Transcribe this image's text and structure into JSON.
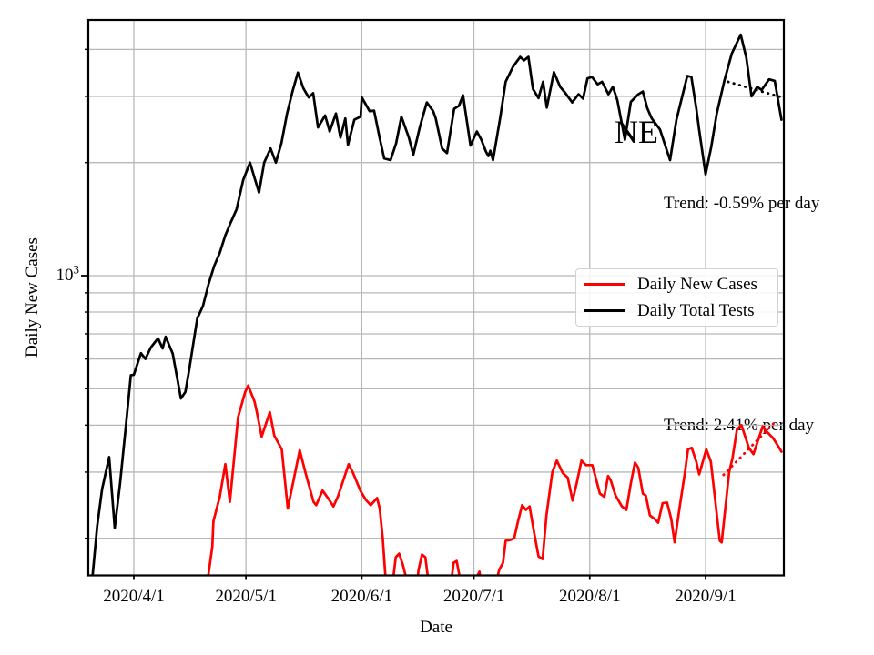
{
  "chart_data": {
    "type": "line",
    "title": "",
    "x_axis": {
      "label": "Date",
      "tick_labels": [
        "2020/4/1",
        "2020/5/1",
        "2020/6/1",
        "2020/7/1",
        "2020/8/1",
        "2020/9/1"
      ],
      "tick_days": [
        12,
        42,
        73,
        103,
        134,
        165
      ],
      "start_date": "2020/3/20",
      "domain_days": [
        0,
        186
      ]
    },
    "y_axis": {
      "label": "Daily New Cases",
      "scale": "log",
      "major_tick": {
        "base": "10",
        "exponent": "3",
        "value": 1000
      },
      "minor_tick_values": [
        200,
        300,
        400,
        500,
        600,
        700,
        800,
        900,
        2000,
        3000,
        4000
      ],
      "range": [
        160,
        4790
      ]
    },
    "grid": {
      "color": "#b8b8b8",
      "which": "both"
    },
    "annotations": [
      {
        "text": "NE"
      }
    ],
    "legend": {
      "position": "center-right",
      "items": [
        {
          "label": "Daily New Cases",
          "color": "#ff0000"
        },
        {
          "label": "Daily Total Tests",
          "color": "#000000"
        }
      ]
    },
    "series": [
      {
        "name": "Daily Total Tests",
        "color": "#000000",
        "points": [
          [
            1.0,
            160
          ],
          [
            2.2,
            215
          ],
          [
            3.5,
            270
          ],
          [
            5.4,
            329
          ],
          [
            6.9,
            213
          ],
          [
            8.3,
            279
          ],
          [
            9.8,
            390
          ],
          [
            11.2,
            543
          ],
          [
            12.0,
            545
          ],
          [
            13.9,
            622
          ],
          [
            15.1,
            600
          ],
          [
            16.6,
            645
          ],
          [
            18.5,
            681
          ],
          [
            19.7,
            640
          ],
          [
            20.5,
            688
          ],
          [
            22.4,
            620
          ],
          [
            24.6,
            471
          ],
          [
            25.8,
            490
          ],
          [
            26.8,
            560
          ],
          [
            29.0,
            770
          ],
          [
            30.5,
            830
          ],
          [
            32.0,
            950
          ],
          [
            33.5,
            1060
          ],
          [
            35.0,
            1150
          ],
          [
            36.5,
            1280
          ],
          [
            38.0,
            1390
          ],
          [
            39.5,
            1500
          ],
          [
            41.3,
            1800
          ],
          [
            43.1,
            2000
          ],
          [
            44.3,
            1820
          ],
          [
            45.5,
            1665
          ],
          [
            46.9,
            2000
          ],
          [
            48.6,
            2180
          ],
          [
            50.0,
            2000
          ],
          [
            51.5,
            2250
          ],
          [
            53.0,
            2700
          ],
          [
            54.5,
            3100
          ],
          [
            55.9,
            3470
          ],
          [
            57.4,
            3150
          ],
          [
            58.8,
            2980
          ],
          [
            60.0,
            3060
          ],
          [
            61.3,
            2480
          ],
          [
            63.2,
            2670
          ],
          [
            64.4,
            2420
          ],
          [
            66.1,
            2700
          ],
          [
            67.3,
            2330
          ],
          [
            68.6,
            2620
          ],
          [
            69.3,
            2230
          ],
          [
            71.0,
            2600
          ],
          [
            72.7,
            2650
          ],
          [
            73.0,
            2980
          ],
          [
            75.1,
            2740
          ],
          [
            76.3,
            2750
          ],
          [
            77.8,
            2320
          ],
          [
            79.0,
            2050
          ],
          [
            80.7,
            2030
          ],
          [
            82.2,
            2250
          ],
          [
            83.6,
            2650
          ],
          [
            85.6,
            2330
          ],
          [
            86.8,
            2100
          ],
          [
            88.6,
            2500
          ],
          [
            90.4,
            2890
          ],
          [
            92.1,
            2740
          ],
          [
            92.8,
            2620
          ],
          [
            94.5,
            2180
          ],
          [
            95.8,
            2120
          ],
          [
            97.7,
            2780
          ],
          [
            99.0,
            2830
          ],
          [
            100.1,
            3020
          ],
          [
            102.1,
            2220
          ],
          [
            103.8,
            2420
          ],
          [
            105.0,
            2300
          ],
          [
            106.2,
            2140
          ],
          [
            106.9,
            2080
          ],
          [
            107.4,
            2150
          ],
          [
            108.1,
            2030
          ],
          [
            110.0,
            2620
          ],
          [
            111.5,
            3280
          ],
          [
            113.5,
            3600
          ],
          [
            115.4,
            3820
          ],
          [
            116.4,
            3740
          ],
          [
            117.6,
            3820
          ],
          [
            118.8,
            3140
          ],
          [
            120.3,
            2970
          ],
          [
            121.5,
            3280
          ],
          [
            122.5,
            2800
          ],
          [
            124.4,
            3480
          ],
          [
            126.1,
            3180
          ],
          [
            127.5,
            3060
          ],
          [
            129.3,
            2890
          ],
          [
            131.0,
            3040
          ],
          [
            132.2,
            2960
          ],
          [
            133.4,
            3350
          ],
          [
            134.6,
            3380
          ],
          [
            136.1,
            3230
          ],
          [
            137.3,
            3280
          ],
          [
            139.0,
            3040
          ],
          [
            140.2,
            3180
          ],
          [
            141.4,
            2930
          ],
          [
            143.4,
            2300
          ],
          [
            145.0,
            2900
          ],
          [
            147.0,
            3040
          ],
          [
            148.2,
            3090
          ],
          [
            149.4,
            2790
          ],
          [
            150.6,
            2620
          ],
          [
            152.8,
            2450
          ],
          [
            155.5,
            2030
          ],
          [
            157.2,
            2600
          ],
          [
            160.1,
            3400
          ],
          [
            161.2,
            3380
          ],
          [
            162.5,
            2790
          ],
          [
            163.3,
            2440
          ],
          [
            165.0,
            1860
          ],
          [
            166.5,
            2200
          ],
          [
            168.0,
            2700
          ],
          [
            170.0,
            3300
          ],
          [
            172.0,
            3900
          ],
          [
            174.4,
            4380
          ],
          [
            175.9,
            3800
          ],
          [
            177.3,
            3000
          ],
          [
            178.8,
            3180
          ],
          [
            180.0,
            3120
          ],
          [
            182.0,
            3330
          ],
          [
            183.5,
            3300
          ],
          [
            185.3,
            2600
          ]
        ]
      },
      {
        "name": "Daily New Cases",
        "color": "#ff0000",
        "points": [
          [
            31.9,
            158
          ],
          [
            33.0,
            190
          ],
          [
            33.3,
            222
          ],
          [
            35.0,
            258
          ],
          [
            36.5,
            315
          ],
          [
            37.7,
            250
          ],
          [
            39.9,
            420
          ],
          [
            41.8,
            490
          ],
          [
            42.6,
            510
          ],
          [
            44.3,
            462
          ],
          [
            45.0,
            430
          ],
          [
            46.2,
            373
          ],
          [
            48.4,
            433
          ],
          [
            49.6,
            375
          ],
          [
            51.6,
            345
          ],
          [
            53.2,
            240
          ],
          [
            56.4,
            343
          ],
          [
            58.1,
            295
          ],
          [
            60.1,
            250
          ],
          [
            60.8,
            245
          ],
          [
            62.5,
            268
          ],
          [
            64.4,
            252
          ],
          [
            65.4,
            243
          ],
          [
            66.6,
            258
          ],
          [
            69.5,
            315
          ],
          [
            70.7,
            298
          ],
          [
            72.7,
            267
          ],
          [
            74.1,
            253
          ],
          [
            75.4,
            245
          ],
          [
            77.1,
            256
          ],
          [
            77.8,
            240
          ],
          [
            78.6,
            200
          ],
          [
            79.4,
            155
          ],
          [
            80.2,
            125
          ],
          [
            81.2,
            150
          ],
          [
            82.1,
            178
          ],
          [
            83.0,
            182
          ],
          [
            84.0,
            170
          ],
          [
            84.8,
            158
          ],
          [
            85.6,
            135
          ],
          [
            86.4,
            120
          ],
          [
            87.3,
            140
          ],
          [
            88.2,
            165
          ],
          [
            89.1,
            181
          ],
          [
            90.0,
            178
          ],
          [
            90.9,
            152
          ],
          [
            91.8,
            128
          ],
          [
            93.0,
            115
          ],
          [
            94.5,
            112
          ],
          [
            95.8,
            125
          ],
          [
            96.8,
            150
          ],
          [
            97.6,
            172
          ],
          [
            98.4,
            174
          ],
          [
            99.3,
            156
          ],
          [
            100.1,
            128
          ],
          [
            101.0,
            115
          ],
          [
            102.0,
            112
          ],
          [
            103.0,
            135
          ],
          [
            103.8,
            158
          ],
          [
            104.5,
            163
          ],
          [
            105.3,
            138
          ],
          [
            106.2,
            118
          ],
          [
            107.0,
            114
          ],
          [
            108.0,
            125
          ],
          [
            108.9,
            152
          ],
          [
            109.8,
            165
          ],
          [
            110.8,
            172
          ],
          [
            111.5,
            197
          ],
          [
            112.8,
            198
          ],
          [
            113.8,
            200
          ],
          [
            114.8,
            222
          ],
          [
            115.9,
            245
          ],
          [
            116.9,
            238
          ],
          [
            117.9,
            243
          ],
          [
            119.0,
            210
          ],
          [
            120.3,
            179
          ],
          [
            121.4,
            176
          ],
          [
            122.4,
            230
          ],
          [
            124.0,
            300
          ],
          [
            125.2,
            322
          ],
          [
            126.8,
            298
          ],
          [
            128.1,
            290
          ],
          [
            129.4,
            252
          ],
          [
            130.5,
            280
          ],
          [
            131.8,
            322
          ],
          [
            133.0,
            313
          ],
          [
            134.7,
            313
          ],
          [
            135.6,
            290
          ],
          [
            136.7,
            263
          ],
          [
            137.9,
            258
          ],
          [
            138.9,
            293
          ],
          [
            139.6,
            285
          ],
          [
            140.9,
            260
          ],
          [
            142.6,
            243
          ],
          [
            143.8,
            238
          ],
          [
            145.0,
            280
          ],
          [
            146.1,
            318
          ],
          [
            147.0,
            308
          ],
          [
            148.2,
            263
          ],
          [
            149.0,
            260
          ],
          [
            150.1,
            230
          ],
          [
            151.4,
            225
          ],
          [
            152.3,
            220
          ],
          [
            153.5,
            248
          ],
          [
            154.7,
            249
          ],
          [
            155.8,
            225
          ],
          [
            156.7,
            195
          ],
          [
            158.0,
            240
          ],
          [
            159.5,
            300
          ],
          [
            160.3,
            345
          ],
          [
            161.3,
            348
          ],
          [
            162.5,
            320
          ],
          [
            163.3,
            296
          ],
          [
            165.2,
            345
          ],
          [
            166.4,
            320
          ],
          [
            168.8,
            197
          ],
          [
            169.3,
            195
          ],
          [
            171.3,
            300
          ],
          [
            172.2,
            327
          ],
          [
            173.4,
            390
          ],
          [
            174.6,
            400
          ],
          [
            176.6,
            348
          ],
          [
            177.8,
            335
          ],
          [
            180.3,
            397
          ],
          [
            181.0,
            388
          ],
          [
            183.0,
            370
          ],
          [
            184.2,
            355
          ],
          [
            185.3,
            340
          ]
        ]
      }
    ],
    "trend_lines": [
      {
        "series": "Daily Total Tests",
        "label": "Trend: -0.59% per day",
        "rate_per_day_pct": -0.59,
        "color": "#000000",
        "points": [
          [
            171.0,
            3280
          ],
          [
            185.6,
            2980
          ]
        ]
      },
      {
        "series": "Daily New Cases",
        "label": "Trend: 2.41% per day",
        "rate_per_day_pct": 2.41,
        "color": "#ff0000",
        "points": [
          [
            169.8,
            295
          ],
          [
            183.6,
            408
          ]
        ]
      }
    ]
  }
}
